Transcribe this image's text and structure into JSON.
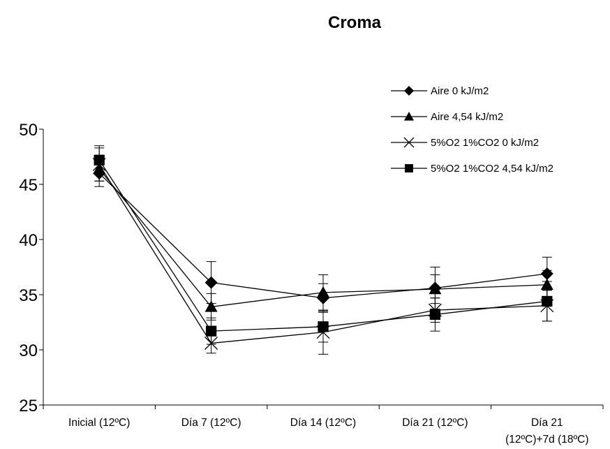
{
  "chart_data": {
    "type": "line",
    "title": "Croma",
    "xlabel": "",
    "ylabel": "",
    "ylim": [
      25,
      50
    ],
    "yticks": [
      25,
      30,
      35,
      40,
      45,
      50
    ],
    "grid": false,
    "legend_position": "top-right",
    "categories": [
      [
        "Inicial (12ºC)"
      ],
      [
        "Día 7 (12ºC)"
      ],
      [
        "Día 14 (12ºC)"
      ],
      [
        "Día 21 (12ºC)"
      ],
      [
        "Día 21",
        "(12ºC)+7d (18ºC)"
      ]
    ],
    "series": [
      {
        "name": "Aire 0 kJ/m2",
        "marker": "diamond",
        "values": [
          46.0,
          36.1,
          34.7,
          35.6,
          36.9
        ],
        "error": [
          1.2,
          1.9,
          1.3,
          1.9,
          1.5
        ]
      },
      {
        "name": "Aire 4,54 kJ/m2",
        "marker": "triangle",
        "values": [
          46.4,
          33.9,
          35.2,
          35.5,
          35.9
        ],
        "error": [
          1.1,
          1.2,
          1.6,
          1.3,
          1.3
        ]
      },
      {
        "name": "5%O2 1%CO2 0 kJ/m2",
        "marker": "x",
        "values": [
          46.8,
          30.6,
          31.6,
          33.6,
          34.0
        ],
        "error": [
          1.5,
          0.9,
          2.0,
          1.1,
          1.4
        ]
      },
      {
        "name": "5%O2 1%CO2 4,54 kJ/m2",
        "marker": "square",
        "values": [
          47.2,
          31.7,
          32.1,
          33.2,
          34.4
        ],
        "error": [
          1.3,
          1.2,
          1.4,
          1.5,
          1.8
        ]
      }
    ]
  }
}
